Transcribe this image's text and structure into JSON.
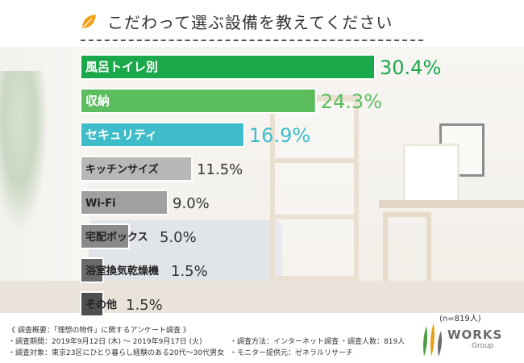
{
  "title": "こだわって選ぶ設備を教えてください",
  "sample": "(n=819人)",
  "survey": {
    "overview": "《 調査概要：「理想の物件」に関するアンケート調査 》",
    "period": "・調査期間：2019年9月12日 (木) ～ 2019年9月17日 (火)",
    "target": "・調査対象：東京23区にひとり暮らし経験のある20代～30代男女",
    "method": "・調査方法：インターネット調査",
    "count": "・調査人数：819人",
    "provider": "・モニター提供元：ゼネラルリサーチ"
  },
  "logo": {
    "name": "WORKS",
    "sub": "Group"
  },
  "chart_data": {
    "type": "bar",
    "orientation": "horizontal",
    "categories": [
      "風呂トイレ別",
      "収納",
      "セキュリティ",
      "キッチンサイズ",
      "Wi-Fi",
      "宅配ボックス",
      "浴室換気乾燥機",
      "その他"
    ],
    "values": [
      30.4,
      24.3,
      16.9,
      11.5,
      9.0,
      5.0,
      1.5,
      1.5
    ],
    "value_labels": [
      "30.4%",
      "24.3%",
      "16.9%",
      "11.5%",
      "9.0%",
      "5.0%",
      "1.5%",
      "1.5%"
    ],
    "unit": "%",
    "colors": [
      "#1aa84a",
      "#5cbd5f",
      "#3fbcc9",
      "#b7b7b7",
      "#a0a0a0",
      "#8a8a8a",
      "#6a6a6a",
      "#4f4f4f"
    ],
    "value_colors": [
      "#1aa84a",
      "#5cbd5f",
      "#3fbcc9",
      "#333333",
      "#333333",
      "#333333",
      "#333333",
      "#333333"
    ],
    "grid": false,
    "legend": "none"
  }
}
